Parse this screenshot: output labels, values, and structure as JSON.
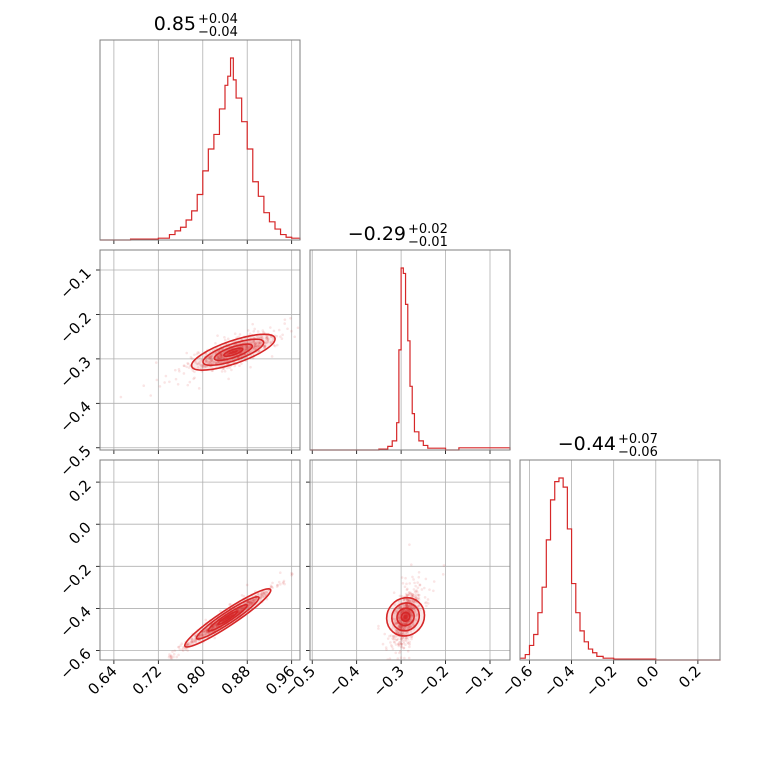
{
  "chart_data": {
    "type": "corner",
    "color": "#d62728",
    "parameters": [
      {
        "title": {
          "median": "0.85",
          "plus": "+0.04",
          "minus": "−0.04"
        },
        "range": [
          0.615,
          0.975
        ],
        "ticks": [
          0.64,
          0.72,
          0.8,
          0.88,
          0.96
        ],
        "tick_labels": [
          "0.64",
          "0.72",
          "0.80",
          "0.88",
          "0.96"
        ]
      },
      {
        "title": {
          "median": "−0.29",
          "plus": "+0.02",
          "minus": "−0.01"
        },
        "range": [
          -0.505,
          -0.055
        ],
        "ticks": [
          -0.5,
          -0.4,
          -0.3,
          -0.2,
          -0.1
        ],
        "tick_labels": [
          "−0.5",
          "−0.4",
          "−0.3",
          "−0.2",
          "−0.1"
        ]
      },
      {
        "title": {
          "median": "−0.44",
          "plus": "+0.07",
          "minus": "−0.06"
        },
        "range": [
          -0.645,
          0.305
        ],
        "ticks": [
          -0.6,
          -0.4,
          -0.2,
          0.0,
          0.2
        ],
        "tick_labels": [
          "−0.6",
          "−0.4",
          "−0.2",
          "0.0",
          "0.2"
        ]
      }
    ],
    "histograms": [
      {
        "param": 0,
        "x": [
          0.615,
          0.67,
          0.72,
          0.74,
          0.75,
          0.76,
          0.77,
          0.78,
          0.79,
          0.8,
          0.81,
          0.82,
          0.83,
          0.84,
          0.845,
          0.85,
          0.855,
          0.86,
          0.87,
          0.88,
          0.89,
          0.9,
          0.91,
          0.92,
          0.93,
          0.94,
          0.95,
          0.96,
          0.975
        ],
        "counts": [
          0.0,
          0.005,
          0.01,
          0.03,
          0.05,
          0.07,
          0.11,
          0.16,
          0.25,
          0.38,
          0.5,
          0.58,
          0.72,
          0.85,
          0.9,
          1.0,
          0.88,
          0.78,
          0.65,
          0.5,
          0.32,
          0.24,
          0.15,
          0.1,
          0.06,
          0.03,
          0.015,
          0.01,
          0.0
        ]
      },
      {
        "param": 1,
        "x": [
          -0.505,
          -0.35,
          -0.33,
          -0.32,
          -0.31,
          -0.305,
          -0.3,
          -0.295,
          -0.29,
          -0.285,
          -0.28,
          -0.275,
          -0.27,
          -0.26,
          -0.25,
          -0.24,
          -0.2,
          -0.17,
          -0.055
        ],
        "counts": [
          0.0,
          0.005,
          0.02,
          0.05,
          0.15,
          0.55,
          1.0,
          0.97,
          0.8,
          0.6,
          0.35,
          0.2,
          0.1,
          0.05,
          0.025,
          0.01,
          0.0,
          0.012,
          0.0
        ]
      },
      {
        "param": 2,
        "x": [
          -0.645,
          -0.62,
          -0.6,
          -0.58,
          -0.56,
          -0.54,
          -0.52,
          -0.5,
          -0.48,
          -0.46,
          -0.44,
          -0.42,
          -0.4,
          -0.38,
          -0.36,
          -0.34,
          -0.32,
          -0.3,
          -0.28,
          -0.25,
          -0.2,
          0.0,
          0.305
        ],
        "counts": [
          0.01,
          0.03,
          0.08,
          0.14,
          0.26,
          0.4,
          0.66,
          0.88,
          0.98,
          1.0,
          0.95,
          0.72,
          0.42,
          0.26,
          0.16,
          0.1,
          0.06,
          0.04,
          0.02,
          0.01,
          0.005,
          0.0,
          0.003
        ]
      }
    ],
    "joint": [
      {
        "x_param": 0,
        "y_param": 1,
        "center": [
          0.855,
          -0.285
        ],
        "x_spread": 0.034,
        "y_spread": 0.012,
        "slope": 0.43,
        "contour_levels": [
          0.5,
          1.0,
          1.6,
          2.2
        ]
      },
      {
        "x_param": 0,
        "y_param": 2,
        "center": [
          0.845,
          -0.445
        ],
        "x_spread": 0.035,
        "y_spread": 0.012,
        "slope": 1.75,
        "contour_levels": [
          0.5,
          1.0,
          1.6,
          2.2
        ]
      },
      {
        "x_param": 1,
        "y_param": 2,
        "center": [
          -0.29,
          -0.44
        ],
        "x_spread": 0.013,
        "y_spread": 0.05,
        "slope": 2.5,
        "contour_levels": [
          0.5,
          1.0,
          1.6,
          2.2
        ]
      }
    ]
  }
}
